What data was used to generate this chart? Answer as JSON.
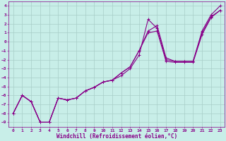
{
  "xlabel": "Windchill (Refroidissement éolien,°C)",
  "xlim": [
    0,
    23
  ],
  "ylim": [
    -9,
    4
  ],
  "xticks": [
    0,
    1,
    2,
    3,
    4,
    5,
    6,
    7,
    8,
    9,
    10,
    11,
    12,
    13,
    14,
    15,
    16,
    17,
    18,
    19,
    20,
    21,
    22,
    23
  ],
  "yticks": [
    -9,
    -8,
    -7,
    -6,
    -5,
    -4,
    -3,
    -2,
    -1,
    0,
    1,
    2,
    3,
    4
  ],
  "bg_color": "#c8eee8",
  "grid_color": "#a8cec8",
  "line_color": "#880088",
  "line1_x": [
    0,
    1,
    2,
    3,
    4,
    5,
    6,
    7,
    8,
    9,
    10,
    11,
    12,
    13,
    14,
    15,
    16,
    17,
    18,
    19,
    20,
    21,
    22,
    23
  ],
  "line1_y": [
    -8.0,
    -6.0,
    -6.7,
    -9.0,
    -9.0,
    -6.3,
    -6.5,
    -6.3,
    -5.5,
    -5.1,
    -4.5,
    -4.3,
    -3.8,
    -3.0,
    -1.5,
    2.5,
    1.5,
    -2.0,
    -2.2,
    -2.2,
    -2.2,
    1.2,
    3.0,
    4.0
  ],
  "line2_x": [
    0,
    1,
    2,
    3,
    4,
    5,
    6,
    7,
    8,
    9,
    10,
    11,
    12,
    13,
    14,
    15,
    16,
    17,
    18,
    19,
    20,
    21,
    22,
    23
  ],
  "line2_y": [
    -8.0,
    -6.0,
    -6.7,
    -9.0,
    -9.0,
    -6.3,
    -6.5,
    -6.3,
    -5.5,
    -5.1,
    -4.5,
    -4.3,
    -3.5,
    -2.8,
    -1.0,
    1.2,
    1.8,
    -1.8,
    -2.2,
    -2.2,
    -2.2,
    1.0,
    2.8,
    3.5
  ],
  "line3_x": [
    0,
    1,
    2,
    3,
    4,
    5,
    6,
    7,
    8,
    9,
    10,
    11,
    12,
    13,
    14,
    15,
    16,
    17,
    18,
    19,
    20,
    21,
    22,
    23
  ],
  "line3_y": [
    -8.0,
    -6.0,
    -6.7,
    -9.0,
    -9.0,
    -6.3,
    -6.5,
    -6.3,
    -5.5,
    -5.1,
    -4.5,
    -4.3,
    -3.5,
    -2.8,
    -1.0,
    1.0,
    1.2,
    -2.2,
    -2.3,
    -2.3,
    -2.3,
    0.8,
    2.7,
    3.5
  ]
}
